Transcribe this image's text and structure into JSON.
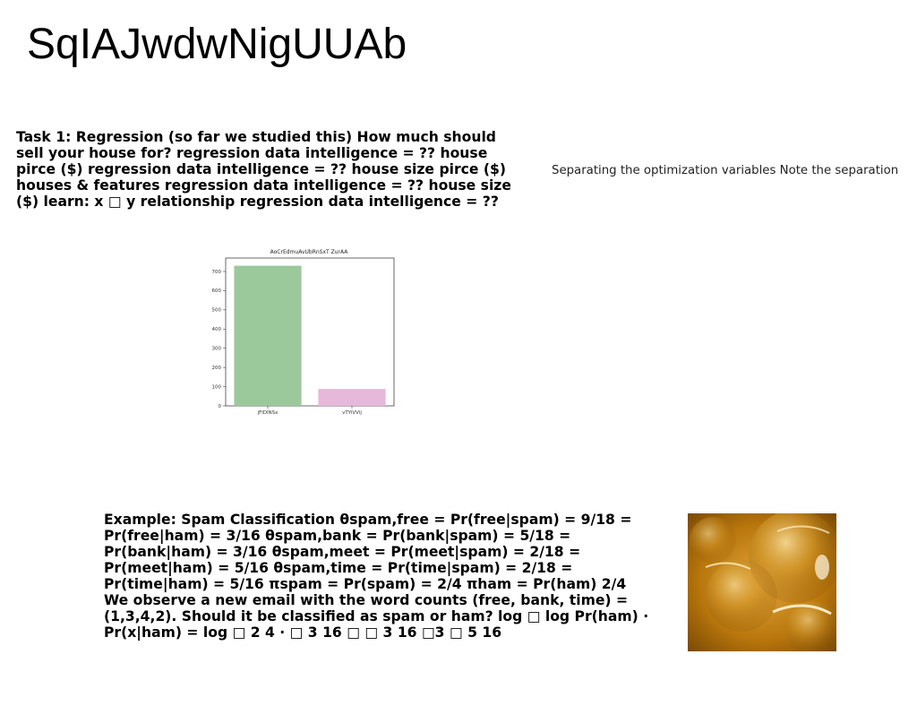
{
  "slide": {
    "title": "SqIAJwdwNigUUAb",
    "task_text": "Task 1: Regression (so far we studied this) How much should sell your house for? regression data intelligence = ?? house pirce ($) regression data intelligence = ?? house size pirce ($) houses & features regression data intelligence = ?? house size ($) learn: x □ y relationship regression data intelligence = ??",
    "side_note": "Separating the optimization variables Note the separation",
    "example_text": "Example: Spam Classification θspam,free = Pr(free|spam) = 9/18 = Pr(free|ham) = 3/16 θspam,bank = Pr(bank|spam) = 5/18 = Pr(bank|ham) = 3/16 θspam,meet = Pr(meet|spam) = 2/18 = Pr(meet|ham) = 5/16 θspam,time = Pr(time|spam) = 2/18 = Pr(time|ham) = 5/16 πspam = Pr(spam) = 2/4 πham = Pr(ham) 2/4 We observe a new email with the word counts (free, bank, time) = (1,3,4,2). Should it be classified as spam or ham? log □ log Pr(ham) · Pr(x|ham) = log □ 2 4 · □ 3 16 □ □ 3 16 □3 □ 5 16",
    "photo_icon": "amber-bubbles-photo"
  },
  "chart_data": {
    "type": "bar",
    "title": "AoCrEdmuAvUbRnSxT ZurAA",
    "categories": [
      "jFlDlNSx",
      "vTYiVVij"
    ],
    "values": [
      730,
      88
    ],
    "colors": [
      "#9cc99c",
      "#e6b8da"
    ],
    "ylim": [
      0,
      770
    ],
    "yticks": [
      0,
      100,
      200,
      300,
      400,
      500,
      600,
      700
    ],
    "xlabel": "",
    "ylabel": "",
    "grid": false
  }
}
